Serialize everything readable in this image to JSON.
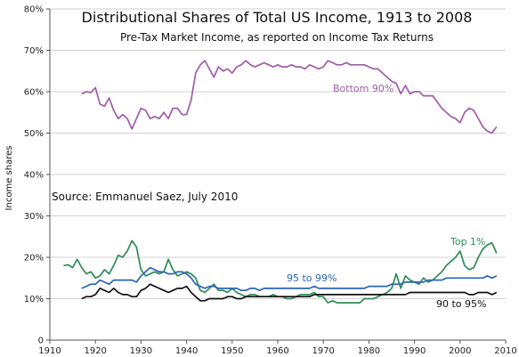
{
  "chart_data": {
    "type": "line",
    "title": "Distributional Shares of Total US Income, 1913 to 2008",
    "subtitle": "Pre-Tax Market Income, as reported on Income Tax Returns",
    "ylabel": "Income shares",
    "xlabel": "",
    "note": "Source:  Emmanuel Saez, July 2010",
    "xlim": [
      1910,
      2010
    ],
    "ylim": [
      0,
      80
    ],
    "x_ticks": [
      "1910",
      "1920",
      "1930",
      "1940",
      "1950",
      "1960",
      "1970",
      "1980",
      "1990",
      "2000",
      "2010"
    ],
    "y_ticks": [
      "0",
      "10%",
      "20%",
      "30%",
      "40%",
      "50%",
      "60%",
      "70%",
      "80%"
    ],
    "grid": "horizontal",
    "series": [
      {
        "name": "Bottom 90%",
        "color": "#a05ca8",
        "label_color": "#a05ca8",
        "x": [
          1917,
          1918,
          1919,
          1920,
          1921,
          1922,
          1923,
          1924,
          1925,
          1926,
          1927,
          1928,
          1929,
          1930,
          1931,
          1932,
          1933,
          1934,
          1935,
          1936,
          1937,
          1938,
          1939,
          1940,
          1941,
          1942,
          1943,
          1944,
          1945,
          1946,
          1947,
          1948,
          1949,
          1950,
          1951,
          1952,
          1953,
          1954,
          1955,
          1956,
          1957,
          1958,
          1959,
          1960,
          1961,
          1962,
          1963,
          1964,
          1965,
          1966,
          1967,
          1968,
          1969,
          1970,
          1971,
          1972,
          1973,
          1974,
          1975,
          1976,
          1977,
          1978,
          1979,
          1980,
          1981,
          1982,
          1983,
          1984,
          1985,
          1986,
          1987,
          1988,
          1989,
          1990,
          1991,
          1992,
          1993,
          1994,
          1995,
          1996,
          1997,
          1998,
          1999,
          2000,
          2001,
          2002,
          2003,
          2004,
          2005,
          2006,
          2007,
          2008
        ],
        "values": [
          59.5,
          60,
          59.8,
          61,
          57,
          56.5,
          58.5,
          55.5,
          53.5,
          54.5,
          53.5,
          51,
          53.5,
          56,
          55.5,
          53.5,
          54,
          53.5,
          55,
          53.5,
          56,
          56,
          54.5,
          54.5,
          58,
          64.5,
          66.5,
          67.5,
          65.5,
          63.5,
          66,
          65,
          65.5,
          64.5,
          66,
          66.5,
          67.5,
          66.5,
          66,
          66.5,
          67,
          66.5,
          66,
          66.5,
          66,
          66,
          66.5,
          66,
          66,
          65.5,
          66.5,
          66,
          65.5,
          66,
          67.5,
          67,
          66.5,
          66.5,
          67,
          66.5,
          66.5,
          66.5,
          66.5,
          66,
          65.5,
          65.5,
          64.5,
          63.5,
          62.5,
          62,
          59.5,
          61.5,
          59.5,
          60,
          60,
          59,
          59,
          59,
          57.5,
          56,
          55,
          54,
          53.5,
          52.5,
          55,
          56,
          55.5,
          53.5,
          51.5,
          50.5,
          50,
          51.5
        ]
      },
      {
        "name": "Top 1%",
        "color": "#2e8b57",
        "label_color": "#2e8b57",
        "x": [
          1913,
          1914,
          1915,
          1916,
          1917,
          1918,
          1919,
          1920,
          1921,
          1922,
          1923,
          1924,
          1925,
          1926,
          1927,
          1928,
          1929,
          1930,
          1931,
          1932,
          1933,
          1934,
          1935,
          1936,
          1937,
          1938,
          1939,
          1940,
          1941,
          1942,
          1943,
          1944,
          1945,
          1946,
          1947,
          1948,
          1949,
          1950,
          1951,
          1952,
          1953,
          1954,
          1955,
          1956,
          1957,
          1958,
          1959,
          1960,
          1961,
          1962,
          1963,
          1964,
          1965,
          1966,
          1967,
          1968,
          1969,
          1970,
          1971,
          1972,
          1973,
          1974,
          1975,
          1976,
          1977,
          1978,
          1979,
          1980,
          1981,
          1982,
          1983,
          1984,
          1985,
          1986,
          1987,
          1988,
          1989,
          1990,
          1991,
          1992,
          1993,
          1994,
          1995,
          1996,
          1997,
          1998,
          1999,
          2000,
          2001,
          2002,
          2003,
          2004,
          2005,
          2006,
          2007,
          2008
        ],
        "values": [
          18,
          18.2,
          17.5,
          19.5,
          17.5,
          16,
          16.5,
          15,
          15.5,
          17,
          16,
          18,
          20.5,
          20,
          21.5,
          24,
          22.5,
          17,
          15.5,
          16,
          16.5,
          16,
          16.5,
          19.5,
          17,
          15.5,
          16,
          16.5,
          16,
          15,
          12,
          11.5,
          12.5,
          13.5,
          12,
          12,
          11.5,
          12.5,
          11.5,
          11,
          10.5,
          11,
          11,
          10.5,
          10.5,
          10.5,
          11,
          10.5,
          10.5,
          10,
          10,
          10.5,
          11,
          11,
          11,
          11.5,
          10.5,
          10.5,
          9,
          9.5,
          9,
          9,
          9,
          9,
          9,
          9,
          10,
          10,
          10,
          10.5,
          11,
          11.5,
          12.5,
          16,
          12.5,
          15.5,
          14.5,
          14,
          13.5,
          15,
          14,
          14.5,
          15.5,
          16.5,
          18,
          19,
          20,
          21.5,
          18,
          17,
          17.5,
          20,
          22,
          23,
          23.5,
          21
        ]
      },
      {
        "name": "95 to 99%",
        "color": "#2a64b8",
        "label_color": "#2a64b8",
        "x": [
          1917,
          1918,
          1919,
          1920,
          1921,
          1922,
          1923,
          1924,
          1925,
          1926,
          1927,
          1928,
          1929,
          1930,
          1931,
          1932,
          1933,
          1934,
          1935,
          1936,
          1937,
          1938,
          1939,
          1940,
          1941,
          1942,
          1943,
          1944,
          1945,
          1946,
          1947,
          1948,
          1949,
          1950,
          1951,
          1952,
          1953,
          1954,
          1955,
          1956,
          1957,
          1958,
          1959,
          1960,
          1961,
          1962,
          1963,
          1964,
          1965,
          1966,
          1967,
          1968,
          1969,
          1970,
          1971,
          1972,
          1973,
          1974,
          1975,
          1976,
          1977,
          1978,
          1979,
          1980,
          1981,
          1982,
          1983,
          1984,
          1985,
          1986,
          1987,
          1988,
          1989,
          1990,
          1991,
          1992,
          1993,
          1994,
          1995,
          1996,
          1997,
          1998,
          1999,
          2000,
          2001,
          2002,
          2003,
          2004,
          2005,
          2006,
          2007,
          2008
        ],
        "values": [
          12.5,
          13,
          13.5,
          13.5,
          14.5,
          14,
          13.5,
          14.5,
          14.5,
          14.5,
          14.5,
          14.5,
          14,
          15.5,
          16.5,
          17.5,
          17,
          16.5,
          16.5,
          16,
          16,
          16.5,
          16.5,
          16,
          15,
          13.5,
          13,
          12.5,
          13,
          13,
          12.5,
          12.5,
          12.5,
          12.5,
          12.5,
          12,
          12,
          12.5,
          12.5,
          12,
          12.5,
          12.5,
          12.5,
          12.5,
          12.5,
          12.5,
          12.5,
          12.5,
          12.5,
          12.5,
          12.5,
          13,
          12.5,
          12.5,
          12.5,
          12.5,
          12.5,
          12.5,
          12.5,
          12.5,
          12.5,
          12.5,
          12.5,
          13,
          13,
          13,
          13,
          13,
          13.5,
          13.5,
          13.5,
          14,
          14,
          14,
          14,
          14,
          14.5,
          14.5,
          14.5,
          14.5,
          15,
          15,
          15,
          15,
          15,
          15,
          15,
          15,
          15,
          15.5,
          15,
          15.5
        ]
      },
      {
        "name": "90 to 95%",
        "color": "#111111",
        "label_color": "#111111",
        "x": [
          1917,
          1918,
          1919,
          1920,
          1921,
          1922,
          1923,
          1924,
          1925,
          1926,
          1927,
          1928,
          1929,
          1930,
          1931,
          1932,
          1933,
          1934,
          1935,
          1936,
          1937,
          1938,
          1939,
          1940,
          1941,
          1942,
          1943,
          1944,
          1945,
          1946,
          1947,
          1948,
          1949,
          1950,
          1951,
          1952,
          1953,
          1954,
          1955,
          1956,
          1957,
          1958,
          1959,
          1960,
          1961,
          1962,
          1963,
          1964,
          1965,
          1966,
          1967,
          1968,
          1969,
          1970,
          1971,
          1972,
          1973,
          1974,
          1975,
          1976,
          1977,
          1978,
          1979,
          1980,
          1981,
          1982,
          1983,
          1984,
          1985,
          1986,
          1987,
          1988,
          1989,
          1990,
          1991,
          1992,
          1993,
          1994,
          1995,
          1996,
          1997,
          1998,
          1999,
          2000,
          2001,
          2002,
          2003,
          2004,
          2005,
          2006,
          2007,
          2008
        ],
        "values": [
          10,
          10.5,
          10.5,
          11,
          12.5,
          12,
          11.5,
          12.5,
          11.5,
          11,
          11,
          10.5,
          10.5,
          12,
          12.5,
          13.5,
          13,
          12.5,
          12,
          11.5,
          12,
          12.5,
          12.5,
          13,
          11.5,
          10.5,
          9.5,
          9.5,
          10,
          10,
          10,
          10,
          10.5,
          10.5,
          10,
          10,
          10.5,
          10.5,
          10.5,
          10.5,
          10.5,
          10.5,
          10.5,
          10.5,
          10.5,
          10.5,
          10.5,
          10.5,
          10.5,
          10.5,
          10.5,
          11,
          11,
          11,
          11,
          11,
          11,
          11,
          11,
          11,
          11,
          11,
          11,
          11,
          11,
          11,
          11,
          11,
          11,
          11,
          11,
          11,
          11.5,
          11.5,
          11.5,
          11.5,
          11.5,
          11.5,
          11.5,
          11.5,
          11.5,
          11.5,
          11.5,
          11.5,
          11.5,
          11,
          11,
          11.5,
          11.5,
          11.5,
          11,
          11.5
        ]
      }
    ]
  }
}
